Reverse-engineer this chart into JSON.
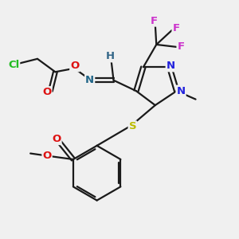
{
  "bg_color": "#f0f0f0",
  "bond_color": "#1a1a1a",
  "bond_width": 1.6,
  "atom_colors": {
    "Cl": "#22bb22",
    "O": "#dd1111",
    "N_blue": "#2222dd",
    "N_imine": "#226688",
    "F": "#cc33cc",
    "S": "#bbbb00",
    "H": "#336688"
  },
  "figsize": [
    3.0,
    3.0
  ],
  "dpi": 100,
  "xlim": [
    0,
    10
  ],
  "ylim": [
    0,
    10
  ]
}
